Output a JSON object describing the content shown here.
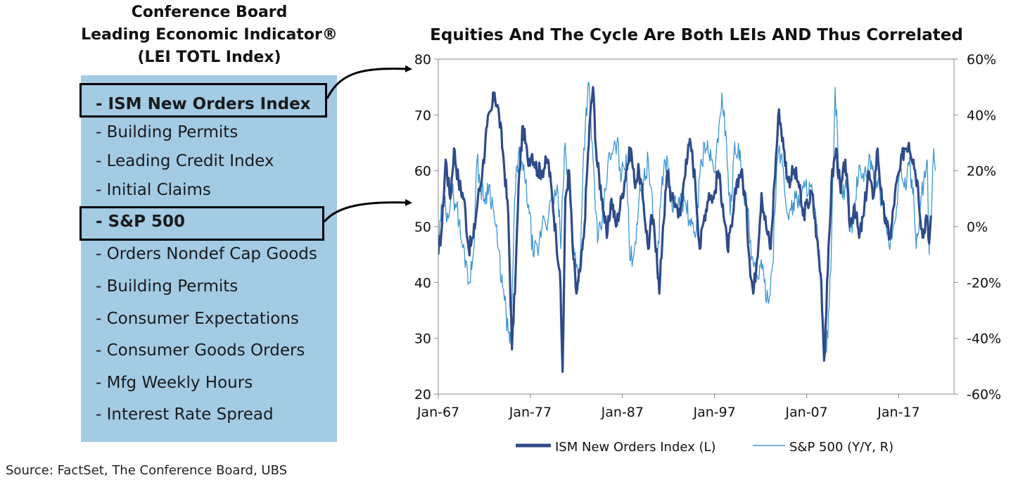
{
  "left_panel": {
    "title_lines": [
      "Conference Board",
      "Leading Economic Indicator®",
      "(LEI TOTL Index)"
    ],
    "items": [
      {
        "label": "- ISM New Orders Index",
        "highlighted": true
      },
      {
        "label": "- Building Permits",
        "highlighted": false
      },
      {
        "label": "- Leading Credit Index",
        "highlighted": false
      },
      {
        "label": "- Initial Claims",
        "highlighted": false
      },
      {
        "label": "- S&P 500",
        "highlighted": true
      },
      {
        "label": "- Orders Nondef Cap Goods",
        "highlighted": false
      },
      {
        "label": "- Building Permits",
        "highlighted": false
      },
      {
        "label": "- Consumer Expectations",
        "highlighted": false
      },
      {
        "label": "- Consumer Goods Orders",
        "highlighted": false
      },
      {
        "label": "- Mfg Weekly Hours",
        "highlighted": false
      },
      {
        "label": "- Interest Rate Spread",
        "highlighted": false
      }
    ]
  },
  "source": "Source:  FactSet, The Conference Board, UBS",
  "colors": {
    "panel_bg": "#a3cbe4",
    "ism_line": "#2e4b8a",
    "spx_line": "#3d97d1",
    "axis": "#888888"
  },
  "chart_data": {
    "type": "line",
    "title": "Equities And The Cycle Are Both LEIs AND Thus Correlated",
    "x_tick_labels": [
      "Jan-67",
      "Jan-77",
      "Jan-87",
      "Jan-97",
      "Jan-07",
      "Jan-17"
    ],
    "x_tick_years": [
      1967,
      1977,
      1987,
      1997,
      2007,
      2017
    ],
    "x_range": [
      1967,
      2023
    ],
    "y_left": {
      "range": [
        20,
        80
      ],
      "ticks": [
        20,
        30,
        40,
        50,
        60,
        70,
        80
      ],
      "labels": [
        "20",
        "30",
        "40",
        "50",
        "60",
        "70",
        "80"
      ]
    },
    "y_right": {
      "range": [
        -60,
        60
      ],
      "ticks": [
        -60,
        -40,
        -20,
        0,
        20,
        40,
        60
      ],
      "labels": [
        "-60%",
        "-40%",
        "-20%",
        "0%",
        "20%",
        "40%",
        "60%"
      ]
    },
    "legend": [
      {
        "name": "ISM New Orders Index (L)",
        "style": "thick"
      },
      {
        "name": "S&P 500 (Y/Y, R)",
        "style": "thin"
      }
    ],
    "series": [
      {
        "name": "ISM New Orders Index (L)",
        "axis": "left",
        "points": [
          [
            1967.0,
            45
          ],
          [
            1967.4,
            50
          ],
          [
            1967.8,
            62
          ],
          [
            1968.3,
            55
          ],
          [
            1968.7,
            64
          ],
          [
            1969.2,
            58
          ],
          [
            1969.8,
            55
          ],
          [
            1970.3,
            46
          ],
          [
            1970.8,
            48
          ],
          [
            1971.3,
            55
          ],
          [
            1971.8,
            60
          ],
          [
            1972.3,
            68
          ],
          [
            1972.8,
            71
          ],
          [
            1973.1,
            74
          ],
          [
            1973.6,
            70
          ],
          [
            1974.1,
            62
          ],
          [
            1974.6,
            52
          ],
          [
            1975.0,
            28
          ],
          [
            1975.4,
            42
          ],
          [
            1975.8,
            60
          ],
          [
            1976.2,
            68
          ],
          [
            1976.7,
            62
          ],
          [
            1977.2,
            63
          ],
          [
            1977.8,
            60
          ],
          [
            1978.3,
            60
          ],
          [
            1978.9,
            62
          ],
          [
            1979.4,
            55
          ],
          [
            1979.8,
            48
          ],
          [
            1980.2,
            42
          ],
          [
            1980.5,
            24
          ],
          [
            1980.8,
            55
          ],
          [
            1981.2,
            60
          ],
          [
            1981.6,
            46
          ],
          [
            1982.0,
            38
          ],
          [
            1982.4,
            42
          ],
          [
            1982.8,
            48
          ],
          [
            1983.1,
            58
          ],
          [
            1983.5,
            70
          ],
          [
            1983.8,
            75
          ],
          [
            1984.2,
            62
          ],
          [
            1984.8,
            55
          ],
          [
            1985.3,
            48
          ],
          [
            1985.8,
            55
          ],
          [
            1986.3,
            50
          ],
          [
            1986.9,
            55
          ],
          [
            1987.4,
            60
          ],
          [
            1987.9,
            64
          ],
          [
            1988.3,
            58
          ],
          [
            1988.8,
            60
          ],
          [
            1989.3,
            54
          ],
          [
            1989.8,
            46
          ],
          [
            1990.2,
            52
          ],
          [
            1990.7,
            46
          ],
          [
            1991.0,
            38
          ],
          [
            1991.4,
            50
          ],
          [
            1991.9,
            60
          ],
          [
            1992.3,
            55
          ],
          [
            1992.8,
            54
          ],
          [
            1993.3,
            52
          ],
          [
            1993.9,
            62
          ],
          [
            1994.4,
            65
          ],
          [
            1994.9,
            58
          ],
          [
            1995.4,
            46
          ],
          [
            1995.9,
            52
          ],
          [
            1996.4,
            56
          ],
          [
            1996.9,
            55
          ],
          [
            1997.4,
            60
          ],
          [
            1997.9,
            54
          ],
          [
            1998.4,
            46
          ],
          [
            1998.9,
            50
          ],
          [
            1999.4,
            58
          ],
          [
            1999.9,
            60
          ],
          [
            2000.4,
            54
          ],
          [
            2000.8,
            44
          ],
          [
            2001.2,
            38
          ],
          [
            2001.6,
            44
          ],
          [
            2002.1,
            56
          ],
          [
            2002.6,
            50
          ],
          [
            2003.1,
            46
          ],
          [
            2003.5,
            58
          ],
          [
            2004.0,
            71
          ],
          [
            2004.5,
            64
          ],
          [
            2005.0,
            58
          ],
          [
            2005.6,
            60
          ],
          [
            2006.1,
            58
          ],
          [
            2006.6,
            52
          ],
          [
            2007.1,
            54
          ],
          [
            2007.6,
            56
          ],
          [
            2008.1,
            48
          ],
          [
            2008.6,
            40
          ],
          [
            2008.9,
            26
          ],
          [
            2009.3,
            42
          ],
          [
            2009.7,
            58
          ],
          [
            2010.2,
            64
          ],
          [
            2010.7,
            56
          ],
          [
            2011.2,
            62
          ],
          [
            2011.7,
            50
          ],
          [
            2012.2,
            54
          ],
          [
            2012.7,
            48
          ],
          [
            2013.2,
            52
          ],
          [
            2013.7,
            60
          ],
          [
            2014.2,
            55
          ],
          [
            2014.7,
            64
          ],
          [
            2015.2,
            54
          ],
          [
            2015.7,
            50
          ],
          [
            2016.1,
            48
          ],
          [
            2016.6,
            56
          ],
          [
            2017.1,
            60
          ],
          [
            2017.6,
            64
          ],
          [
            2018.1,
            65
          ],
          [
            2018.6,
            62
          ],
          [
            2019.1,
            57
          ],
          [
            2019.6,
            48
          ],
          [
            2020.0,
            52
          ],
          [
            2020.3,
            47
          ],
          [
            2020.5,
            52
          ]
        ]
      },
      {
        "name": "S&P 500 (Y/Y, R)",
        "axis": "right",
        "points": [
          [
            1967.0,
            -8
          ],
          [
            1967.5,
            10
          ],
          [
            1968.0,
            5
          ],
          [
            1968.5,
            12
          ],
          [
            1969.0,
            8
          ],
          [
            1969.5,
            -5
          ],
          [
            1970.0,
            -12
          ],
          [
            1970.4,
            -20
          ],
          [
            1970.8,
            -10
          ],
          [
            1971.2,
            24
          ],
          [
            1971.6,
            14
          ],
          [
            1972.0,
            10
          ],
          [
            1972.5,
            15
          ],
          [
            1973.0,
            6
          ],
          [
            1973.5,
            -8
          ],
          [
            1974.0,
            -22
          ],
          [
            1974.6,
            -38
          ],
          [
            1974.9,
            -42
          ],
          [
            1975.3,
            10
          ],
          [
            1975.7,
            26
          ],
          [
            1976.2,
            20
          ],
          [
            1976.8,
            8
          ],
          [
            1977.3,
            -10
          ],
          [
            1977.9,
            -8
          ],
          [
            1978.4,
            4
          ],
          [
            1978.9,
            2
          ],
          [
            1979.4,
            10
          ],
          [
            1980.0,
            12
          ],
          [
            1980.3,
            -8
          ],
          [
            1980.7,
            28
          ],
          [
            1981.2,
            14
          ],
          [
            1981.8,
            -10
          ],
          [
            1982.3,
            -20
          ],
          [
            1982.8,
            28
          ],
          [
            1983.3,
            52
          ],
          [
            1983.8,
            24
          ],
          [
            1984.3,
            -6
          ],
          [
            1984.8,
            2
          ],
          [
            1985.4,
            22
          ],
          [
            1985.9,
            26
          ],
          [
            1986.4,
            30
          ],
          [
            1986.9,
            18
          ],
          [
            1987.4,
            26
          ],
          [
            1987.8,
            -12
          ],
          [
            1988.3,
            -8
          ],
          [
            1988.8,
            10
          ],
          [
            1989.3,
            16
          ],
          [
            1989.8,
            24
          ],
          [
            1990.3,
            4
          ],
          [
            1990.8,
            -12
          ],
          [
            1991.3,
            18
          ],
          [
            1991.9,
            24
          ],
          [
            1992.4,
            6
          ],
          [
            1992.9,
            8
          ],
          [
            1993.4,
            10
          ],
          [
            1993.9,
            8
          ],
          [
            1994.4,
            0
          ],
          [
            1994.9,
            -4
          ],
          [
            1995.4,
            18
          ],
          [
            1995.9,
            30
          ],
          [
            1996.4,
            26
          ],
          [
            1996.9,
            20
          ],
          [
            1997.4,
            30
          ],
          [
            1997.8,
            48
          ],
          [
            1998.3,
            30
          ],
          [
            1998.7,
            4
          ],
          [
            1999.1,
            26
          ],
          [
            1999.6,
            30
          ],
          [
            2000.1,
            12
          ],
          [
            2000.6,
            6
          ],
          [
            2001.0,
            -12
          ],
          [
            2001.5,
            -18
          ],
          [
            2001.9,
            -14
          ],
          [
            2002.4,
            -20
          ],
          [
            2002.8,
            -26
          ],
          [
            2003.3,
            -14
          ],
          [
            2003.8,
            24
          ],
          [
            2004.3,
            26
          ],
          [
            2004.8,
            6
          ],
          [
            2005.3,
            6
          ],
          [
            2005.8,
            10
          ],
          [
            2006.3,
            10
          ],
          [
            2006.8,
            14
          ],
          [
            2007.3,
            16
          ],
          [
            2007.8,
            8
          ],
          [
            2008.3,
            -8
          ],
          [
            2008.7,
            -30
          ],
          [
            2009.0,
            -46
          ],
          [
            2009.3,
            -40
          ],
          [
            2009.7,
            -6
          ],
          [
            2010.1,
            50
          ],
          [
            2010.5,
            20
          ],
          [
            2010.9,
            10
          ],
          [
            2011.3,
            14
          ],
          [
            2011.7,
            -2
          ],
          [
            2012.2,
            6
          ],
          [
            2012.7,
            22
          ],
          [
            2013.2,
            16
          ],
          [
            2013.7,
            22
          ],
          [
            2014.2,
            22
          ],
          [
            2014.7,
            14
          ],
          [
            2015.2,
            10
          ],
          [
            2015.7,
            -2
          ],
          [
            2016.1,
            -6
          ],
          [
            2016.6,
            2
          ],
          [
            2017.1,
            20
          ],
          [
            2017.6,
            14
          ],
          [
            2018.1,
            22
          ],
          [
            2018.6,
            14
          ],
          [
            2018.9,
            -8
          ],
          [
            2019.3,
            6
          ],
          [
            2019.8,
            20
          ],
          [
            2020.1,
            24
          ],
          [
            2020.3,
            -10
          ],
          [
            2020.6,
            10
          ],
          [
            2020.8,
            28
          ],
          [
            2021.0,
            20
          ]
        ]
      }
    ]
  }
}
